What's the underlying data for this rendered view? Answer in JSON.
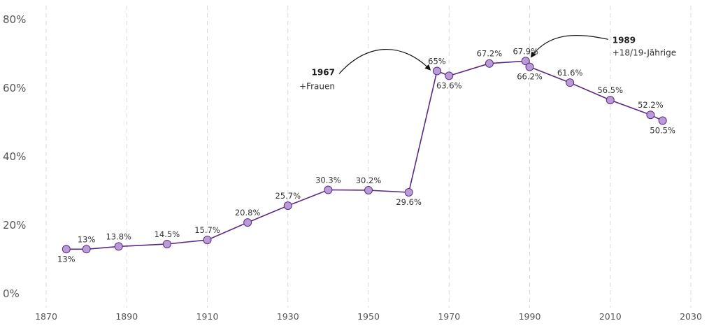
{
  "chart_data": {
    "type": "line",
    "title": "",
    "xlabel": "",
    "ylabel": "",
    "xlim": [
      1866,
      2032
    ],
    "ylim": [
      0,
      80
    ],
    "x_ticks": [
      1870,
      1890,
      1910,
      1930,
      1950,
      1970,
      1990,
      2010,
      2030
    ],
    "y_ticks": [
      0,
      20,
      40,
      60,
      80
    ],
    "y_tick_labels": [
      "0%",
      "20%",
      "40%",
      "60%",
      "80%"
    ],
    "grid": "vertical dashed",
    "series": [
      {
        "color": "#5b2a86",
        "marker_fill": "#b99bd6",
        "points": [
          {
            "x": 1875,
            "y": 13.0,
            "label": "13%",
            "pos": "below"
          },
          {
            "x": 1880,
            "y": 13.0,
            "label": "13%",
            "pos": "above"
          },
          {
            "x": 1888,
            "y": 13.8,
            "label": "13.8%",
            "pos": "above"
          },
          {
            "x": 1900,
            "y": 14.5,
            "label": "14.5%",
            "pos": "above"
          },
          {
            "x": 1910,
            "y": 15.7,
            "label": "15.7%",
            "pos": "above"
          },
          {
            "x": 1920,
            "y": 20.8,
            "label": "20.8%",
            "pos": "above"
          },
          {
            "x": 1930,
            "y": 25.7,
            "label": "25.7%",
            "pos": "above"
          },
          {
            "x": 1940,
            "y": 30.3,
            "label": "30.3%",
            "pos": "above"
          },
          {
            "x": 1950,
            "y": 30.2,
            "label": "30.2%",
            "pos": "above"
          },
          {
            "x": 1960,
            "y": 29.6,
            "label": "29.6%",
            "pos": "below"
          },
          {
            "x": 1967,
            "y": 65.0,
            "label": "65%",
            "pos": "above"
          },
          {
            "x": 1970,
            "y": 63.6,
            "label": "63.6%",
            "pos": "below"
          },
          {
            "x": 1980,
            "y": 67.2,
            "label": "67.2%",
            "pos": "above"
          },
          {
            "x": 1989,
            "y": 67.9,
            "label": "67.9%",
            "pos": "above"
          },
          {
            "x": 1990,
            "y": 66.2,
            "label": "66.2%",
            "pos": "below"
          },
          {
            "x": 2000,
            "y": 61.6,
            "label": "61.6%",
            "pos": "above"
          },
          {
            "x": 2010,
            "y": 56.5,
            "label": "56.5%",
            "pos": "above"
          },
          {
            "x": 2020,
            "y": 52.2,
            "label": "52.2%",
            "pos": "above"
          },
          {
            "x": 2023,
            "y": 50.5,
            "label": "50.5%",
            "pos": "below"
          }
        ]
      }
    ],
    "annotations": [
      {
        "year": "1967",
        "text": "+Frauen",
        "target_x": 1967,
        "target_y": 65.0,
        "side": "left"
      },
      {
        "year": "1989",
        "text": "+18/19-Jährige",
        "target_x": 1989,
        "target_y": 67.9,
        "side": "right"
      }
    ]
  }
}
